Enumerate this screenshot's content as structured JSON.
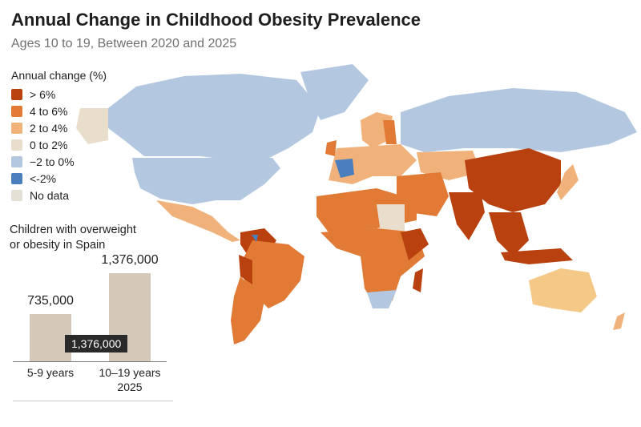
{
  "title": "Annual Change in Childhood Obesity Prevalence",
  "subtitle": "Ages 10 to 19, Between 2020 and 2025",
  "legend": {
    "title": "Annual change (%)",
    "items": [
      {
        "label": "> 6%",
        "color": "#b8410f"
      },
      {
        "label": "4 to 6%",
        "color": "#e07a35"
      },
      {
        "label": "2 to 4%",
        "color": "#f0b27a"
      },
      {
        "label": "0 to 2%",
        "color": "#e9ddcb"
      },
      {
        "label": "−2 to 0%",
        "color": "#b3c8e0"
      },
      {
        "label": "<-2%",
        "color": "#4a7fbd"
      },
      {
        "label": "No data",
        "color": "#e4e0d6"
      }
    ]
  },
  "inset": {
    "title_line1": "Children with overweight",
    "title_line2": "or obesity in Spain",
    "tooltip": "1,376,000"
  },
  "chart_data": {
    "type": "bar",
    "title": "Children with overweight or obesity in Spain",
    "categories": [
      "5-9 years",
      "10–19 years"
    ],
    "category_sublabels": [
      "",
      "2025"
    ],
    "values": [
      735000,
      1376000
    ],
    "value_labels": [
      "735,000",
      "1,376,000"
    ],
    "ylim": [
      0,
      1450000
    ],
    "color": "#d4c9b9"
  }
}
